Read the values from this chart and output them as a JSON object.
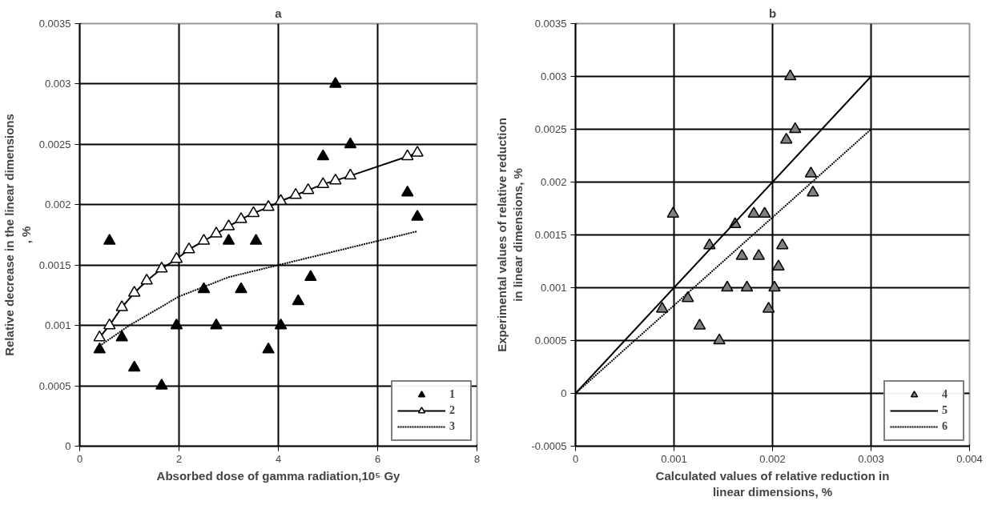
{
  "chart_data": [
    {
      "type": "scatter",
      "title": "a",
      "xlabel": "Absorbed dose of gamma radiation,10⁵ Gy",
      "ylabel": "Relative decrease in the linear dimensions , %",
      "xlim": [
        0,
        8
      ],
      "xticks": [
        0,
        2,
        4,
        6,
        8
      ],
      "ylim": [
        0,
        0.0035
      ],
      "yticks": [
        0,
        0.0005,
        0.001,
        0.0015,
        0.002,
        0.0025,
        0.003,
        0.0035
      ],
      "grid": true,
      "legend": "bottom right",
      "series": [
        {
          "name": "1",
          "type": "scatter",
          "marker": "triangle",
          "color": "#000000",
          "x": [
            0.4,
            0.6,
            0.85,
            1.1,
            1.65,
            1.95,
            2.5,
            2.75,
            3.0,
            3.25,
            3.55,
            3.8,
            4.05,
            4.4,
            4.65,
            4.9,
            5.15,
            5.45,
            6.6,
            6.8
          ],
          "values": [
            0.0008,
            0.0017,
            0.0009,
            0.00065,
            0.0005,
            0.001,
            0.0013,
            0.001,
            0.0017,
            0.0013,
            0.0017,
            0.0008,
            0.001,
            0.0012,
            0.0014,
            0.0024,
            0.003,
            0.0025,
            0.0021,
            0.0019
          ]
        },
        {
          "name": "2",
          "type": "line",
          "marker": "triangle",
          "line_style": "solid",
          "color": "#000000",
          "x": [
            0.4,
            0.6,
            0.85,
            1.1,
            1.35,
            1.65,
            1.95,
            2.2,
            2.5,
            2.75,
            3.0,
            3.25,
            3.5,
            3.8,
            4.05,
            4.35,
            4.6,
            4.9,
            5.15,
            5.45,
            6.6,
            6.8
          ],
          "values": [
            0.0009,
            0.001,
            0.00115,
            0.00127,
            0.00137,
            0.00147,
            0.00155,
            0.00163,
            0.0017,
            0.00176,
            0.00182,
            0.00188,
            0.00193,
            0.00198,
            0.00203,
            0.00208,
            0.00212,
            0.00217,
            0.0022,
            0.00224,
            0.0024,
            0.00243
          ]
        },
        {
          "name": "3",
          "type": "line",
          "marker": "none",
          "line_style": "dotted",
          "color": "#000000",
          "x": [
            0.4,
            1,
            2,
            3,
            4,
            5,
            6,
            6.8
          ],
          "values": [
            0.00083,
            0.001,
            0.00124,
            0.0014,
            0.0015,
            0.0016,
            0.0017,
            0.00178
          ]
        }
      ]
    },
    {
      "type": "scatter",
      "title": "b",
      "xlabel": "Calculated values of relative reduction in linear dimensions, %",
      "ylabel": "Experimental values of relative reduction in linear dimensions, %",
      "xlim": [
        0,
        0.004
      ],
      "xticks": [
        0,
        0.001,
        0.002,
        0.003,
        0.004
      ],
      "ylim": [
        -0.0005,
        0.0035
      ],
      "yticks": [
        -0.0005,
        0,
        0.0005,
        0.001,
        0.0015,
        0.002,
        0.0025,
        0.003,
        0.0035
      ],
      "grid": true,
      "legend": "bottom right",
      "series": [
        {
          "name": "4",
          "type": "scatter",
          "marker": "triangle",
          "color": "#808080",
          "x": [
            0.00218,
            0.00223,
            0.00214,
            0.00239,
            0.00241,
            0.00099,
            0.00181,
            0.00192,
            0.00162,
            0.00136,
            0.0021,
            0.00169,
            0.00186,
            0.00206,
            0.00154,
            0.00174,
            0.00202,
            0.00196,
            0.00114,
            0.00088,
            0.00126,
            0.00146
          ],
          "values": [
            0.003,
            0.0025,
            0.0024,
            0.00208,
            0.0019,
            0.0017,
            0.0017,
            0.0017,
            0.0016,
            0.0014,
            0.0014,
            0.0013,
            0.0013,
            0.0012,
            0.001,
            0.001,
            0.001,
            0.0008,
            0.0009,
            0.0008,
            0.00064,
            0.0005
          ]
        },
        {
          "name": "5",
          "type": "line",
          "marker": "none",
          "line_style": "solid",
          "color": "#000000",
          "x": [
            0,
            0.003
          ],
          "values": [
            0,
            0.003
          ]
        },
        {
          "name": "6",
          "type": "line",
          "marker": "none",
          "line_style": "dotted",
          "color": "#000000",
          "x": [
            0,
            0.003
          ],
          "values": [
            0,
            0.0025
          ]
        }
      ]
    }
  ]
}
